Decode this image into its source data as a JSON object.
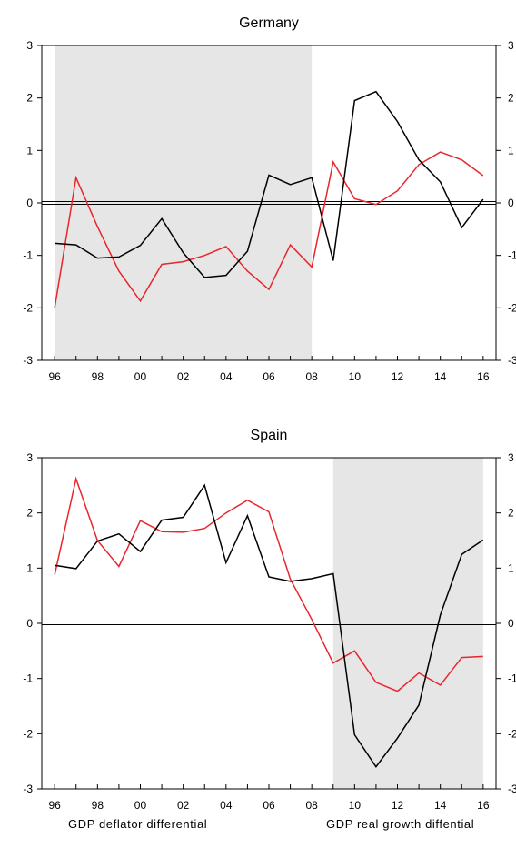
{
  "colors": {
    "deflator": "#e8262b",
    "growth": "#000000",
    "shade": "#e6e6e6"
  },
  "legend": {
    "deflator_label": "GDP deflator differential",
    "growth_label": "GDP real growth diffential"
  },
  "chart_data": [
    {
      "type": "line",
      "title": "Germany",
      "x": [
        1996,
        1997,
        1998,
        1999,
        2000,
        2001,
        2002,
        2003,
        2004,
        2005,
        2006,
        2007,
        2008,
        2009,
        2010,
        2011,
        2012,
        2013,
        2014,
        2015,
        2016
      ],
      "x_tick_labels": [
        "96",
        "98",
        "00",
        "02",
        "04",
        "06",
        "08",
        "10",
        "12",
        "14",
        "16"
      ],
      "x_tick_values": [
        1996,
        1998,
        2000,
        2002,
        2004,
        2006,
        2008,
        2010,
        2012,
        2014,
        2016
      ],
      "xlim": [
        1995.4,
        2016.6
      ],
      "ylim": [
        -3,
        3
      ],
      "y_ticks": [
        -3,
        -2,
        -1,
        0,
        1,
        2,
        3
      ],
      "y_tick_labels": [
        "-3",
        "-2",
        "-1",
        "0",
        "1",
        "2",
        "3"
      ],
      "shaded_x": [
        1996,
        2008
      ],
      "series": [
        {
          "name": "GDP deflator differential",
          "color": "#e8262b",
          "values": [
            -2.0,
            0.48,
            -0.45,
            -1.3,
            -1.87,
            -1.17,
            -1.12,
            -1.0,
            -0.83,
            -1.3,
            -1.65,
            -0.8,
            -1.22,
            0.78,
            0.08,
            -0.03,
            0.23,
            0.73,
            0.97,
            0.82,
            0.52
          ]
        },
        {
          "name": "GDP real growth diffential",
          "color": "#000000",
          "values": [
            -0.77,
            -0.8,
            -1.05,
            -1.03,
            -0.81,
            -0.3,
            -0.95,
            -1.42,
            -1.38,
            -0.92,
            0.53,
            0.35,
            0.48,
            -1.1,
            1.95,
            2.12,
            1.55,
            0.82,
            0.4,
            -0.47,
            0.07
          ]
        }
      ]
    },
    {
      "type": "line",
      "title": "Spain",
      "x": [
        1996,
        1997,
        1998,
        1999,
        2000,
        2001,
        2002,
        2003,
        2004,
        2005,
        2006,
        2007,
        2008,
        2009,
        2010,
        2011,
        2012,
        2013,
        2014,
        2015,
        2016
      ],
      "x_tick_labels": [
        "96",
        "98",
        "00",
        "02",
        "04",
        "06",
        "08",
        "10",
        "12",
        "14",
        "16"
      ],
      "x_tick_values": [
        1996,
        1998,
        2000,
        2002,
        2004,
        2006,
        2008,
        2010,
        2012,
        2014,
        2016
      ],
      "xlim": [
        1995.4,
        2016.6
      ],
      "ylim": [
        -3,
        3
      ],
      "y_ticks": [
        -3,
        -2,
        -1,
        0,
        1,
        2,
        3
      ],
      "y_tick_labels": [
        "-3",
        "-2",
        "-1",
        "0",
        "1",
        "2",
        "3"
      ],
      "shaded_x": [
        2009,
        2016
      ],
      "series": [
        {
          "name": "GDP deflator differential",
          "color": "#e8262b",
          "values": [
            0.88,
            2.62,
            1.5,
            1.03,
            1.86,
            1.66,
            1.65,
            1.72,
            2.0,
            2.23,
            2.02,
            0.8,
            0.07,
            -0.72,
            -0.5,
            -1.07,
            -1.23,
            -0.9,
            -1.12,
            -0.62,
            -0.6
          ]
        },
        {
          "name": "GDP real growth diffential",
          "color": "#000000",
          "values": [
            1.05,
            0.99,
            1.49,
            1.62,
            1.3,
            1.87,
            1.92,
            2.5,
            1.1,
            1.95,
            0.84,
            0.76,
            0.81,
            0.9,
            -2.02,
            -2.6,
            -2.08,
            -1.48,
            0.15,
            1.25,
            1.51
          ]
        }
      ]
    }
  ]
}
